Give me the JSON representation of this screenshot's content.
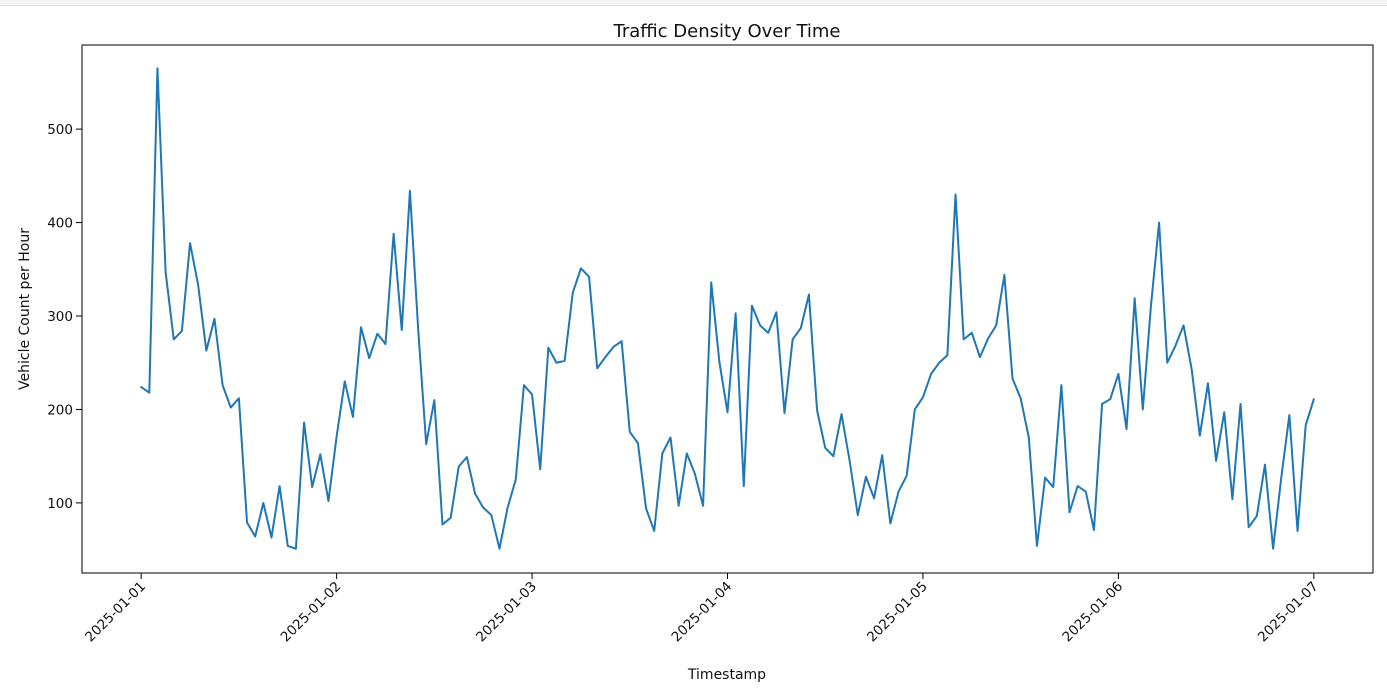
{
  "chart_data": {
    "type": "line",
    "title": "Traffic Density Over Time",
    "xlabel": "Timestamp",
    "ylabel": "Vehicle Count per Hour",
    "xlim": [
      "2024-12-31T16:44",
      "2025-01-07T07:16"
    ],
    "ylim": [
      25,
      590
    ],
    "x_ticks": [
      "2025-01-01",
      "2025-01-02",
      "2025-01-03",
      "2025-01-04",
      "2025-01-05",
      "2025-01-06",
      "2025-01-07"
    ],
    "y_ticks": [
      100,
      200,
      300,
      400,
      500
    ],
    "grid": false,
    "legend": "none",
    "x_start": "2025-01-01T00:00",
    "x_step_hours": 1,
    "series": [
      {
        "color": "#1f77b4",
        "values": [
          224,
          218,
          565,
          347,
          275,
          284,
          378,
          333,
          263,
          297,
          226,
          202,
          212,
          79,
          64,
          100,
          63,
          118,
          54,
          51,
          186,
          117,
          152,
          102,
          171,
          230,
          192,
          288,
          255,
          281,
          270,
          388,
          285,
          434,
          288,
          163,
          210,
          77,
          84,
          139,
          149,
          110,
          95,
          87,
          51,
          95,
          125,
          226,
          216,
          136,
          266,
          250,
          252,
          325,
          351,
          342,
          244,
          256,
          267,
          273,
          176,
          164,
          94,
          70,
          153,
          170,
          97,
          153,
          131,
          97,
          336,
          251,
          197,
          303,
          118,
          311,
          290,
          282,
          304,
          196,
          275,
          287,
          323,
          199,
          159,
          150,
          195,
          145,
          87,
          128,
          105,
          151,
          78,
          112,
          129,
          200,
          213,
          238,
          250,
          258,
          430,
          275,
          282,
          256,
          276,
          290,
          344,
          233,
          212,
          170,
          54,
          127,
          117,
          226,
          90,
          118,
          112,
          71,
          206,
          211,
          238,
          179,
          319,
          200,
          311,
          400,
          250,
          268,
          290,
          243,
          172,
          228,
          145,
          197,
          104,
          206,
          74,
          86,
          141,
          51,
          127,
          194,
          70,
          183,
          211
        ]
      }
    ]
  }
}
